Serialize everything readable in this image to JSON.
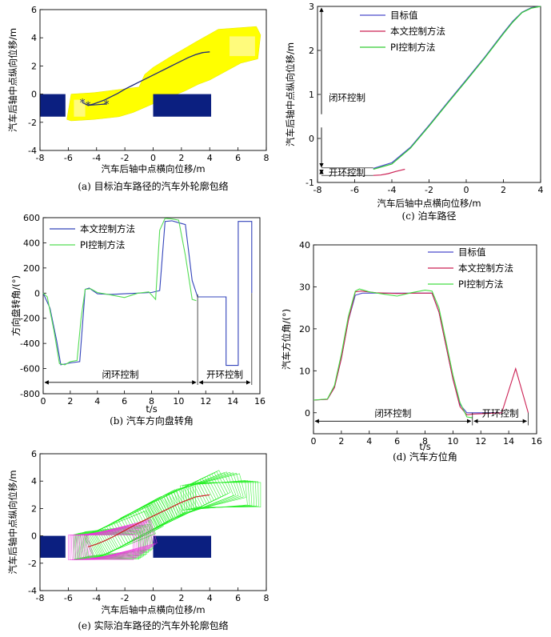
{
  "chart_data": [
    {
      "id": "a",
      "type": "area",
      "caption": "(a) 目标泊车路径的汽车外轮廓包络",
      "xlabel": "汽车后轴中点横向位移/m",
      "ylabel": "汽车后轴中点纵向位移/m",
      "xlim": [
        -8,
        8
      ],
      "ylim": [
        -4,
        6
      ],
      "xticks": [
        "-8",
        "-6",
        "-4",
        "-2",
        "0",
        "2",
        "4",
        "6",
        "8"
      ],
      "yticks": [
        "-4",
        "-2",
        "0",
        "2",
        "4",
        "6"
      ],
      "colors": {
        "envelope": "#ffff00",
        "path": "#1f2a7a",
        "block": "#0b1f80",
        "marker": "#1f2a7a"
      },
      "obstacles": [
        {
          "x": [
            -8,
            -6.2
          ],
          "y": [
            -1.6,
            0
          ]
        },
        {
          "x": [
            0,
            4.1
          ],
          "y": [
            -1.6,
            0
          ]
        }
      ],
      "envelope": {
        "x": [
          -6.1,
          -5.8,
          -4.2,
          -2.4,
          -1.4,
          0.2,
          2.2,
          3.2,
          4.0,
          6.2,
          7.4,
          7.6,
          7.3,
          4.6,
          3.0,
          1.3,
          0.0,
          -0.6,
          -1.0,
          -4.2,
          -5.8,
          -6.1
        ],
        "y": [
          -1.8,
          -1.9,
          -1.8,
          -1.6,
          -1.3,
          -0.6,
          0.2,
          0.7,
          1.0,
          2.2,
          2.5,
          4.2,
          4.8,
          4.6,
          3.7,
          2.7,
          1.9,
          1.4,
          0.5,
          0.1,
          0.0,
          -1.8
        ]
      },
      "path": {
        "x": [
          -4.6,
          -4.2,
          -3.8,
          -3.4,
          -3.0,
          -2.5,
          -2.0,
          -1.5,
          -1.0,
          -0.5,
          0.0,
          0.5,
          1.0,
          1.5,
          2.0,
          2.5,
          3.0,
          3.5,
          4.0
        ],
        "y": [
          -0.8,
          -0.7,
          -0.55,
          -0.4,
          -0.2,
          0.05,
          0.35,
          0.6,
          0.85,
          1.1,
          1.35,
          1.6,
          1.85,
          2.1,
          2.35,
          2.6,
          2.8,
          2.95,
          3.0
        ]
      },
      "markers": {
        "x": [
          -5.0,
          -4.6,
          -3.3
        ],
        "y": [
          -0.6,
          -0.8,
          -0.7
        ]
      }
    },
    {
      "id": "c",
      "type": "line",
      "caption": "(c) 泊车路径",
      "xlabel": "汽车后轴中点横向位移/m",
      "ylabel": "汽车后轴中点纵向位移/m",
      "xlim": [
        -8,
        4
      ],
      "ylim": [
        -1,
        3
      ],
      "xticks": [
        "-8",
        "-6",
        "-4",
        "-2",
        "0",
        "2",
        "4"
      ],
      "yticks": [
        "-1",
        "0",
        "1",
        "2",
        "3"
      ],
      "legend": [
        "目标值",
        "本文控制方法",
        "PI控制方法"
      ],
      "annotations": {
        "closed": "闭环控制",
        "open": "开环控制"
      },
      "series": [
        {
          "name": "目标值",
          "color": "#4b4bcc",
          "x": [
            -5.0,
            -4.0,
            -3.0,
            -2.0,
            -1.0,
            0.0,
            1.0,
            2.0,
            2.5,
            3.0,
            3.5,
            4.0
          ],
          "y": [
            -0.68,
            -0.55,
            -0.2,
            0.3,
            0.82,
            1.33,
            1.85,
            2.4,
            2.66,
            2.87,
            2.97,
            3.0
          ]
        },
        {
          "name": "本文控制方法",
          "color": "#cc2255",
          "x": [
            -5.0,
            -4.6,
            -4.2,
            -3.8,
            -3.4,
            -3.3
          ],
          "y": [
            -0.84,
            -0.83,
            -0.8,
            -0.75,
            -0.71,
            -0.7
          ]
        },
        {
          "name": "PI控制方法",
          "color": "#33cc33",
          "x": [
            -5.0,
            -4.0,
            -3.0,
            -2.0,
            -1.0,
            0.0,
            1.0,
            2.0,
            2.5,
            3.0,
            3.5,
            4.0
          ],
          "y": [
            -0.7,
            -0.58,
            -0.22,
            0.28,
            0.8,
            1.31,
            1.83,
            2.38,
            2.64,
            2.86,
            2.96,
            3.0
          ]
        }
      ]
    },
    {
      "id": "b",
      "type": "line",
      "caption": "(b) 汽车方向盘转角",
      "xlabel": "t/s",
      "ylabel": "方向盘转角/(°)",
      "xlim": [
        0,
        16
      ],
      "ylim": [
        -800,
        600
      ],
      "xticks": [
        "0",
        "2",
        "4",
        "6",
        "8",
        "10",
        "12",
        "14",
        "16"
      ],
      "yticks": [
        "-800",
        "-600",
        "-400",
        "-200",
        "0",
        "200",
        "400",
        "600"
      ],
      "legend": [
        "本文控制方法",
        "PI控制方法"
      ],
      "annotations": {
        "closed": "闭环控制",
        "open": "开环控制"
      },
      "series": [
        {
          "name": "本文控制方法",
          "color": "#3344bb",
          "x": [
            0,
            0.5,
            1.0,
            1.3,
            2.0,
            2.7,
            3.1,
            3.4,
            4.0,
            5.0,
            6.0,
            7.0,
            8.0,
            8.6,
            9.0,
            9.5,
            10.0,
            10.5,
            11.0,
            11.4,
            12.0,
            13.5,
            13.5,
            14.4,
            14.4,
            15.4,
            15.4
          ],
          "y": [
            0,
            -120,
            -380,
            -570,
            -555,
            -545,
            30,
            40,
            -5,
            -10,
            -5,
            0,
            5,
            20,
            570,
            575,
            560,
            545,
            100,
            -30,
            -30,
            -30,
            -575,
            -575,
            570,
            570,
            0
          ]
        },
        {
          "name": "PI控制方法",
          "color": "#55dd55",
          "x": [
            0,
            0.3,
            0.8,
            1.2,
            1.6,
            2.0,
            2.5,
            2.8,
            3.1,
            3.5,
            4.0,
            5.0,
            6.0,
            7.0,
            7.8,
            8.3,
            8.6,
            9.0,
            9.5,
            10.0,
            10.5,
            11.0,
            11.3
          ],
          "y": [
            0,
            -30,
            -300,
            -560,
            -570,
            -545,
            -535,
            -200,
            30,
            35,
            5,
            -15,
            -35,
            0,
            10,
            -50,
            500,
            595,
            590,
            580,
            300,
            -50,
            -60
          ]
        }
      ]
    },
    {
      "id": "d",
      "type": "line",
      "caption": "(d) 汽车方位角",
      "xlabel": "t/s",
      "ylabel": "汽车方位角/(°)",
      "xlim": [
        0,
        16
      ],
      "ylim": [
        -5,
        40
      ],
      "xticks": [
        "0",
        "2",
        "4",
        "6",
        "8",
        "10",
        "12",
        "14",
        "16"
      ],
      "yticks": [
        "0",
        "10",
        "20",
        "30",
        "40"
      ],
      "legend": [
        "目标值",
        "本文控制方法",
        "PI控制方法"
      ],
      "annotations": {
        "closed": "闭环控制",
        "open": "开环控制"
      },
      "series": [
        {
          "name": "目标值",
          "color": "#4b4bcc",
          "x": [
            0,
            1.0,
            1.5,
            2.0,
            2.5,
            3.0,
            3.5,
            4.5,
            6.0,
            7.5,
            8.5,
            9.0,
            9.5,
            10.0,
            10.5,
            11.0,
            11.4,
            13.5
          ],
          "y": [
            3,
            3.2,
            6,
            13,
            22,
            28,
            28.5,
            28.5,
            28.5,
            28.5,
            28.5,
            24,
            16,
            8,
            2,
            0,
            0,
            0
          ]
        },
        {
          "name": "本文控制方法",
          "color": "#cc2255",
          "x": [
            0,
            1.0,
            1.5,
            2.0,
            2.5,
            3.0,
            3.4,
            4.5,
            6.0,
            7.5,
            8.5,
            9.0,
            9.5,
            10.0,
            10.5,
            11.0,
            11.4,
            13.5,
            14.5,
            15.4
          ],
          "y": [
            3,
            3.2,
            6,
            13,
            22,
            28.8,
            29,
            28.6,
            28.4,
            28.5,
            28.5,
            24,
            16,
            8,
            1.5,
            -0.5,
            -0.3,
            0,
            10.5,
            0
          ]
        },
        {
          "name": "PI控制方法",
          "color": "#44dd44",
          "x": [
            0,
            1.0,
            1.5,
            2.0,
            2.5,
            3.0,
            3.3,
            4.0,
            5.0,
            6.0,
            7.0,
            8.0,
            8.5,
            9.0,
            9.5,
            10.0,
            10.5,
            11.0,
            11.4
          ],
          "y": [
            3,
            3.3,
            6.5,
            14,
            23,
            29,
            29.5,
            28.8,
            28.3,
            27.8,
            28.6,
            29.2,
            29,
            25,
            17,
            9,
            2.5,
            -1.0,
            -1.2
          ]
        }
      ]
    },
    {
      "id": "e",
      "type": "area",
      "caption": "(e) 实际泊车路径的汽车外轮廓包络",
      "xlabel": "汽车后轴中点横向位移/m",
      "ylabel": "汽车后轴中点纵向位移/m",
      "xlim": [
        -8,
        8
      ],
      "ylim": [
        -4,
        6
      ],
      "xticks": [
        "-8",
        "-6",
        "-4",
        "-2",
        "0",
        "2",
        "4",
        "6",
        "8"
      ],
      "yticks": [
        "-4",
        "-2",
        "0",
        "2",
        "4",
        "6"
      ],
      "colors": {
        "green": "#22ee22",
        "magenta": "#ee33dd",
        "path": "#cc2222",
        "block": "#0b1f80"
      },
      "obstacles": [
        {
          "x": [
            -8,
            -6.2
          ],
          "y": [
            -1.6,
            0
          ]
        },
        {
          "x": [
            0,
            4.1
          ],
          "y": [
            -1.6,
            0
          ]
        }
      ],
      "path": {
        "x": [
          -4.6,
          -4.0,
          -3.4,
          -2.8,
          -2.0,
          -1.0,
          0.0,
          1.0,
          2.0,
          3.0,
          4.0
        ],
        "y": [
          -0.8,
          -0.6,
          -0.35,
          -0.05,
          0.4,
          0.95,
          1.45,
          1.95,
          2.45,
          2.85,
          3.0
        ]
      }
    }
  ]
}
